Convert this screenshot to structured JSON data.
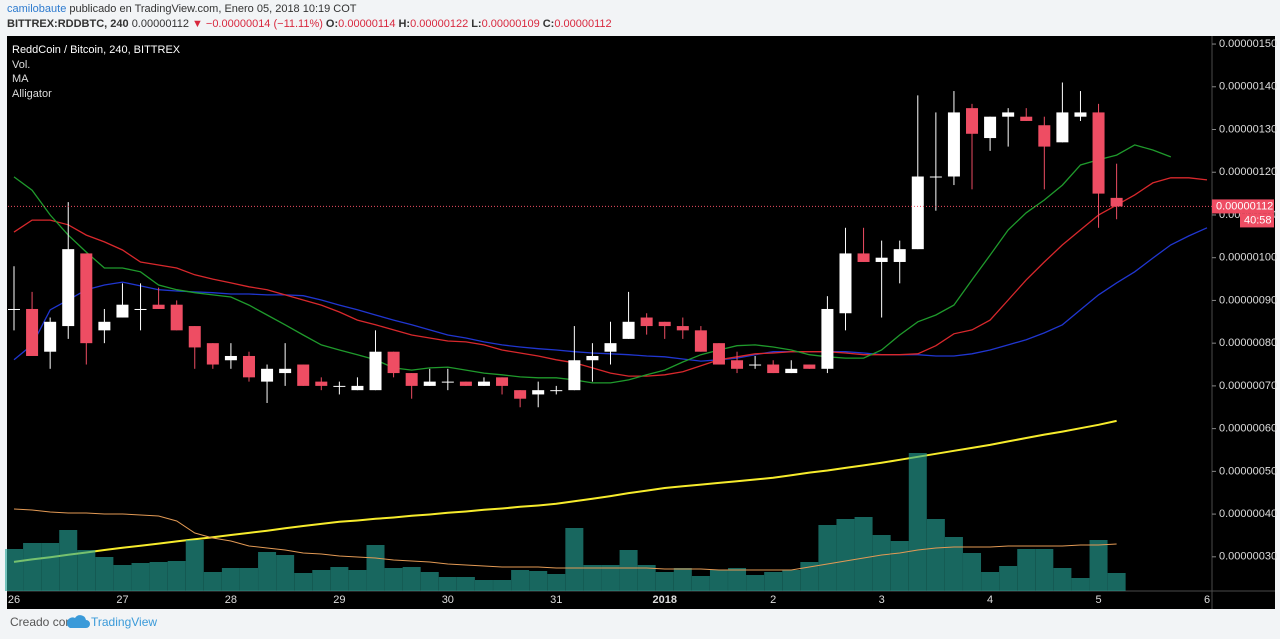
{
  "header": {
    "author": "camilobaute",
    "published": "publicado en TradingView.com, Enero 05, 2018 10:19 COT",
    "symbol": "BITTREX:RDDBTC, 240",
    "last": "0.00000112",
    "arrow": "▼",
    "change": "−0.00000014 (−11.11%)",
    "ohlc": [
      {
        "label": "O:",
        "value": "0.00000114"
      },
      {
        "label": "H:",
        "value": "0.00000122"
      },
      {
        "label": "L:",
        "value": "0.00000109"
      },
      {
        "label": "C:",
        "value": "0.00000112"
      }
    ]
  },
  "footer": {
    "created": "Creado con",
    "brand": "TradingView"
  },
  "chart_data": {
    "type": "candlestick",
    "title": "ReddCoin / Bitcoin, 240, BITTREX",
    "up_color": "#ffffff",
    "down_color": "#ee4d63",
    "categories": [
      "26",
      null,
      null,
      null,
      null,
      null,
      "27",
      null,
      null,
      null,
      null,
      null,
      "28",
      null,
      null,
      null,
      null,
      null,
      "29",
      null,
      null,
      null,
      null,
      null,
      "30",
      null,
      null,
      null,
      null,
      null,
      "31",
      null,
      null,
      null,
      null,
      null,
      "2018",
      null,
      null,
      null,
      null,
      null,
      "2",
      null,
      null,
      null,
      null,
      null,
      "3",
      null,
      null,
      null,
      null,
      null,
      "4",
      null,
      null,
      null,
      null,
      null,
      "5",
      null,
      null,
      null,
      null,
      null,
      "6"
    ],
    "open": [
      8.8e-07,
      8.8e-07,
      7.8e-07,
      8.4e-07,
      1.01e-06,
      8.3e-07,
      8.6e-07,
      8.8e-07,
      8.9e-07,
      8.9e-07,
      8.4e-07,
      8e-07,
      7.6e-07,
      7.7e-07,
      7.1e-07,
      7.3e-07,
      7.5e-07,
      7.1e-07,
      7e-07,
      6.9e-07,
      6.9e-07,
      7.8e-07,
      7.3e-07,
      7e-07,
      7.1e-07,
      7.1e-07,
      7e-07,
      7.2e-07,
      6.9e-07,
      6.8e-07,
      6.9e-07,
      6.9e-07,
      7.6e-07,
      7.8e-07,
      8.1e-07,
      8.6e-07,
      8.5e-07,
      8.4e-07,
      8.3e-07,
      8e-07,
      7.6e-07,
      7.5e-07,
      7.5e-07,
      7.3e-07,
      7.5e-07,
      7.4e-07,
      8.7e-07,
      1.01e-06,
      9.9e-07,
      9.9e-07,
      1.02e-06,
      1.19e-06,
      1.19e-06,
      1.35e-06,
      1.28e-06,
      1.33e-06,
      1.33e-06,
      1.31e-06,
      1.27e-06,
      1.33e-06,
      1.34e-06,
      1.14e-06,
      null,
      null,
      null,
      null,
      null
    ],
    "high": [
      9.8e-07,
      9.2e-07,
      8.6e-07,
      1.13e-06,
      1.01e-06,
      8.8e-07,
      9.4e-07,
      9.4e-07,
      9.3e-07,
      9e-07,
      8.4e-07,
      8e-07,
      8e-07,
      7.8e-07,
      7.5e-07,
      8e-07,
      7.5e-07,
      7.2e-07,
      7.1e-07,
      7.2e-07,
      8.3e-07,
      7.8e-07,
      7.3e-07,
      7.4e-07,
      7.4e-07,
      7.1e-07,
      7.2e-07,
      7.2e-07,
      6.9e-07,
      7.1e-07,
      7e-07,
      8.4e-07,
      8e-07,
      8.5e-07,
      9.2e-07,
      8.7e-07,
      8.5e-07,
      8.6e-07,
      8.4e-07,
      8e-07,
      7.8e-07,
      7.7e-07,
      7.6e-07,
      7.6e-07,
      7.5e-07,
      9.1e-07,
      1.07e-06,
      1.07e-06,
      1.04e-06,
      1.04e-06,
      1.38e-06,
      1.34e-06,
      1.39e-06,
      1.36e-06,
      1.33e-06,
      1.35e-06,
      1.35e-06,
      1.33e-06,
      1.41e-06,
      1.39e-06,
      1.36e-06,
      1.22e-06,
      null,
      null,
      null,
      null,
      null
    ],
    "low": [
      8.3e-07,
      7.7e-07,
      7.4e-07,
      8.1e-07,
      7.5e-07,
      8e-07,
      8.6e-07,
      8.3e-07,
      8.8e-07,
      8.3e-07,
      7.4e-07,
      7.4e-07,
      7.4e-07,
      7.1e-07,
      6.6e-07,
      7e-07,
      7e-07,
      6.9e-07,
      6.8e-07,
      6.9e-07,
      6.9e-07,
      7.2e-07,
      6.7e-07,
      7e-07,
      6.9e-07,
      7e-07,
      7e-07,
      6.8e-07,
      6.5e-07,
      6.5e-07,
      6.8e-07,
      6.9e-07,
      7.1e-07,
      7.5e-07,
      8.1e-07,
      8.2e-07,
      8.1e-07,
      8.1e-07,
      7.8e-07,
      7.5e-07,
      7.3e-07,
      7.4e-07,
      7.3e-07,
      7.3e-07,
      7.4e-07,
      7.3e-07,
      8.3e-07,
      9.9e-07,
      8.6e-07,
      9.4e-07,
      1.02e-06,
      1.11e-06,
      1.17e-06,
      1.16e-06,
      1.25e-06,
      1.26e-06,
      1.32e-06,
      1.16e-06,
      1.27e-06,
      1.32e-06,
      1.07e-06,
      1.09e-06,
      null,
      null,
      null,
      null,
      null
    ],
    "close": [
      8.8e-07,
      7.7e-07,
      8.5e-07,
      1.02e-06,
      8e-07,
      8.5e-07,
      8.9e-07,
      8.8e-07,
      8.8e-07,
      8.3e-07,
      7.9e-07,
      7.5e-07,
      7.7e-07,
      7.2e-07,
      7.4e-07,
      7.4e-07,
      7e-07,
      7e-07,
      7e-07,
      7e-07,
      7.8e-07,
      7.3e-07,
      7e-07,
      7.1e-07,
      7.1e-07,
      7e-07,
      7.1e-07,
      7e-07,
      6.7e-07,
      6.9e-07,
      6.9e-07,
      7.6e-07,
      7.7e-07,
      8e-07,
      8.5e-07,
      8.4e-07,
      8.4e-07,
      8.3e-07,
      7.8e-07,
      7.5e-07,
      7.4e-07,
      7.5e-07,
      7.3e-07,
      7.4e-07,
      7.4e-07,
      8.8e-07,
      1.01e-06,
      9.9e-07,
      1e-06,
      1.02e-06,
      1.19e-06,
      1.19e-06,
      1.34e-06,
      1.29e-06,
      1.33e-06,
      1.34e-06,
      1.32e-06,
      1.26e-06,
      1.34e-06,
      1.34e-06,
      1.15e-06,
      1.12e-06,
      null,
      null,
      null,
      null,
      null
    ],
    "volume": {
      "name": "Vol.",
      "color": "#26a69a",
      "values": [
        42,
        48,
        48,
        61,
        41,
        34,
        26,
        28,
        29,
        30,
        51,
        19,
        23,
        23,
        39,
        36,
        18,
        21,
        24,
        21,
        46,
        23,
        24,
        19,
        14,
        14,
        11,
        11,
        21,
        20,
        17,
        63,
        26,
        26,
        41,
        26,
        19,
        23,
        15,
        21,
        23,
        16,
        19,
        21,
        29,
        66,
        72,
        74,
        56,
        50,
        138,
        72,
        54,
        38,
        19,
        25,
        42,
        42,
        23,
        13,
        51,
        18,
        null,
        null,
        null,
        null,
        null
      ],
      "ma_color": "#e39a55",
      "ma_values": [
        82,
        81,
        79,
        78,
        78,
        77,
        77,
        76,
        75,
        70,
        58,
        53,
        50,
        45,
        43,
        41,
        38,
        37,
        35,
        34,
        33,
        31,
        30,
        29,
        27,
        26,
        25,
        24,
        24,
        24,
        23,
        23,
        23,
        23,
        23,
        23,
        22,
        22,
        22,
        21,
        21,
        21,
        21,
        21,
        24,
        27,
        30,
        33,
        36,
        38,
        41,
        43,
        44,
        44,
        44,
        45,
        45,
        45,
        45,
        46,
        46,
        47,
        null,
        null,
        null,
        null,
        null
      ]
    },
    "indicators": [
      {
        "name": "MA",
        "lines": [
          {
            "color": "#f7ec2c",
            "values": [
              2.88e-07,
              2.94e-07,
              2.99e-07,
              3.05e-07,
              3.1e-07,
              3.16e-07,
              3.21e-07,
              3.26e-07,
              3.31e-07,
              3.36e-07,
              3.41e-07,
              3.46e-07,
              3.51e-07,
              3.56e-07,
              3.61e-07,
              3.67e-07,
              3.72e-07,
              3.77e-07,
              3.82e-07,
              3.85e-07,
              3.89e-07,
              3.92e-07,
              3.96e-07,
              3.99e-07,
              4.03e-07,
              4.06e-07,
              4.1e-07,
              4.13e-07,
              4.17e-07,
              4.2e-07,
              4.24e-07,
              4.3e-07,
              4.36e-07,
              4.42e-07,
              4.49e-07,
              4.55e-07,
              4.61e-07,
              4.65e-07,
              4.69e-07,
              4.73e-07,
              4.77e-07,
              4.81e-07,
              4.85e-07,
              4.91e-07,
              4.97e-07,
              5.02e-07,
              5.08e-07,
              5.14e-07,
              5.2e-07,
              5.27e-07,
              5.34e-07,
              5.41e-07,
              5.48e-07,
              5.55e-07,
              5.62e-07,
              5.7e-07,
              5.78e-07,
              5.86e-07,
              5.93e-07,
              6.01e-07,
              6.09e-07,
              6.18e-07,
              null,
              null,
              null,
              null,
              null
            ]
          }
        ]
      },
      {
        "name": "Alligator",
        "lines": [
          {
            "color": "#2036d0",
            "values": [
              7.61e-07,
              7.96e-07,
              8.78e-07,
              9.01e-07,
              9.25e-07,
              9.36e-07,
              9.43e-07,
              9.34e-07,
              9.25e-07,
              9.22e-07,
              9.2e-07,
              9.18e-07,
              9.15e-07,
              9.15e-07,
              9.13e-07,
              9.13e-07,
              9.11e-07,
              9.01e-07,
              8.89e-07,
              8.78e-07,
              8.66e-07,
              8.54e-07,
              8.43e-07,
              8.31e-07,
              8.19e-07,
              8.12e-07,
              8.03e-07,
              7.96e-07,
              7.91e-07,
              7.87e-07,
              7.84e-07,
              7.8e-07,
              7.77e-07,
              7.75e-07,
              7.73e-07,
              7.7e-07,
              7.68e-07,
              7.63e-07,
              7.58e-07,
              7.61e-07,
              7.65e-07,
              7.73e-07,
              7.8e-07,
              7.8e-07,
              7.8e-07,
              7.8e-07,
              7.8e-07,
              7.77e-07,
              7.73e-07,
              7.73e-07,
              7.73e-07,
              7.7e-07,
              7.7e-07,
              7.75e-07,
              7.84e-07,
              7.96e-07,
              8.08e-07,
              8.24e-07,
              8.43e-07,
              8.78e-07,
              9.13e-07,
              9.41e-07,
              9.67e-07,
              9.99e-07,
              1.03e-06,
              1.051e-06,
              1.07e-06
            ]
          },
          {
            "color": "#d8282c",
            "values": [
              1.06e-06,
              1.088e-06,
              1.088e-06,
              1.077e-06,
              1.053e-06,
              1.037e-06,
              1.018e-06,
              9.9e-07,
              9.83e-07,
              9.76e-07,
              9.6e-07,
              9.5e-07,
              9.41e-07,
              9.32e-07,
              9.25e-07,
              9.13e-07,
              9.01e-07,
              8.89e-07,
              8.73e-07,
              8.54e-07,
              8.43e-07,
              8.31e-07,
              8.19e-07,
              8.12e-07,
              8.05e-07,
              8.03e-07,
              7.96e-07,
              7.84e-07,
              7.77e-07,
              7.7e-07,
              7.61e-07,
              7.54e-07,
              7.42e-07,
              7.3e-07,
              7.23e-07,
              7.23e-07,
              7.26e-07,
              7.33e-07,
              7.47e-07,
              7.61e-07,
              7.68e-07,
              7.75e-07,
              7.77e-07,
              7.8e-07,
              7.8e-07,
              7.8e-07,
              7.77e-07,
              7.73e-07,
              7.73e-07,
              7.73e-07,
              7.75e-07,
              7.94e-07,
              8.22e-07,
              8.31e-07,
              8.54e-07,
              9.01e-07,
              9.48e-07,
              9.9e-07,
              1.03e-06,
              1.065e-06,
              1.1e-06,
              1.123e-06,
              1.147e-06,
              1.175e-06,
              1.187e-06,
              1.187e-06,
              1.182e-06
            ]
          },
          {
            "color": "#1f9a2c",
            "values": [
              1.189e-06,
              1.158e-06,
              1.1e-06,
              1.053e-06,
              1.013e-06,
              9.76e-07,
              9.76e-07,
              9.67e-07,
              9.36e-07,
              9.25e-07,
              9.18e-07,
              9.13e-07,
              9.08e-07,
              8.89e-07,
              8.66e-07,
              8.43e-07,
              8.19e-07,
              7.96e-07,
              7.84e-07,
              7.73e-07,
              7.61e-07,
              7.42e-07,
              7.37e-07,
              7.42e-07,
              7.44e-07,
              7.37e-07,
              7.3e-07,
              7.26e-07,
              7.21e-07,
              7.19e-07,
              7.19e-07,
              7.14e-07,
              7.07e-07,
              7.07e-07,
              7.14e-07,
              7.26e-07,
              7.37e-07,
              7.56e-07,
              7.73e-07,
              7.84e-07,
              7.94e-07,
              7.96e-07,
              7.91e-07,
              7.84e-07,
              7.73e-07,
              7.68e-07,
              7.65e-07,
              7.65e-07,
              7.84e-07,
              8.19e-07,
              8.5e-07,
              8.66e-07,
              8.89e-07,
              9.48e-07,
              1.006e-06,
              1.065e-06,
              1.105e-06,
              1.135e-06,
              1.17e-06,
              1.217e-06,
              1.229e-06,
              1.24e-06,
              1.264e-06,
              1.252e-06,
              1.236e-06,
              null,
              null
            ]
          }
        ]
      }
    ],
    "ylim": [
      2.2e-07,
      1.52e-06
    ],
    "yticks": [
      {
        "value": 1.5e-06,
        "label": "0.00000150"
      },
      {
        "value": 1.4e-06,
        "label": "0.00000140"
      },
      {
        "value": 1.3e-06,
        "label": "0.00000130"
      },
      {
        "value": 1.2e-06,
        "label": "0.00000120"
      },
      {
        "value": 1.1e-06,
        "label": "0.00000110"
      },
      {
        "value": 1e-06,
        "label": "0.00000100"
      },
      {
        "value": 9e-07,
        "label": "0.00000090"
      },
      {
        "value": 8e-07,
        "label": "0.00000080"
      },
      {
        "value": 7e-07,
        "label": "0.00000070"
      },
      {
        "value": 6e-07,
        "label": "0.00000060"
      },
      {
        "value": 5e-07,
        "label": "0.00000050"
      },
      {
        "value": 4e-07,
        "label": "0.00000040"
      },
      {
        "value": 3e-07,
        "label": "0.00000030"
      }
    ],
    "last_price": {
      "value": 1.12e-06,
      "label": "0.00000112"
    },
    "countdown": "40:58"
  }
}
